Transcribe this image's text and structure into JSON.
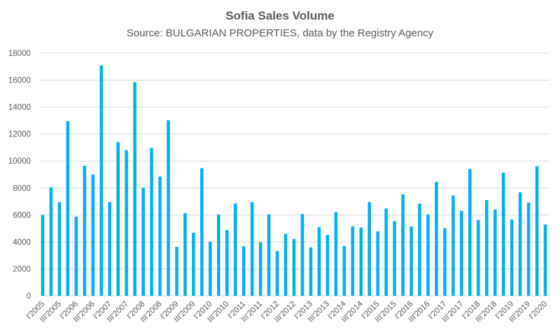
{
  "chart_data": {
    "type": "bar",
    "title": "Sofia Sales Volume",
    "subtitle": "Source: BULGARIAN PROPERTIES, data by the Registry Agency",
    "xlabel": "",
    "ylabel": "",
    "ylim": [
      0,
      18000
    ],
    "yticks": [
      0,
      2000,
      4000,
      6000,
      8000,
      10000,
      12000,
      14000,
      16000,
      18000
    ],
    "grid": true,
    "bar_color": "#00b0f0",
    "categories": [
      "I'2005",
      "II'2005",
      "III'2005",
      "IV'2005",
      "I'2006",
      "II'2006",
      "III'2006",
      "IV'2006",
      "I'2007",
      "II'2007",
      "III'2007",
      "IV'2007",
      "I'2008",
      "II'2008",
      "III'2008",
      "IV'2008",
      "I'2009",
      "II'2009",
      "III'2009",
      "IV'2009",
      "I'2010",
      "II'2010",
      "III'2010",
      "IV'2010",
      "I'2011",
      "II'2011",
      "III'2011",
      "IV'2011",
      "I'2012",
      "II'2012",
      "III'2012",
      "IV'2012",
      "I'2013",
      "II'2013",
      "III'2013",
      "IV'2013",
      "I'2014",
      "II'2014",
      "III'2014",
      "IV'2014",
      "I'2015",
      "II'2015",
      "III'2015",
      "IV'2015",
      "I'2016",
      "II'2016",
      "III'2016",
      "IV'2016",
      "I'2017",
      "II'2017",
      "III'2017",
      "IV'2017",
      "I'2018",
      "II'2018",
      "III'2018",
      "IV'2018",
      "I'2019",
      "II'2019",
      "III'2019",
      "IV'2019",
      "I'2020"
    ],
    "shown_tick_labels": [
      "I'2005",
      "III'2005",
      "I'2006",
      "III'2006",
      "I'2007",
      "III'2007",
      "I'2008",
      "III'2008",
      "I'2009",
      "III'2009",
      "I'2010",
      "III'2010",
      "I'2011",
      "III'2011",
      "I'2012",
      "III'2012",
      "I'2013",
      "III'2013",
      "I'2014",
      "III'2014",
      "I'2015",
      "III'2015",
      "I'2016",
      "III'2016",
      "I'2017",
      "III'2017",
      "I'2018",
      "III'2018",
      "I'2019",
      "III'2019",
      "I'2020"
    ],
    "values": [
      6000,
      8050,
      6950,
      12950,
      5880,
      9650,
      9000,
      17100,
      6950,
      11400,
      10800,
      15850,
      8020,
      10980,
      8850,
      13020,
      3630,
      6130,
      4680,
      9470,
      4020,
      6040,
      4880,
      6850,
      3670,
      6950,
      3990,
      6040,
      3320,
      4600,
      4220,
      6070,
      3600,
      5100,
      4520,
      6200,
      3700,
      5160,
      5060,
      6960,
      4780,
      6480,
      5540,
      7530,
      5150,
      6840,
      6050,
      8450,
      5020,
      7440,
      6300,
      9410,
      5620,
      7110,
      6390,
      9130,
      5660,
      7680,
      6910,
      9620,
      5290
    ]
  }
}
